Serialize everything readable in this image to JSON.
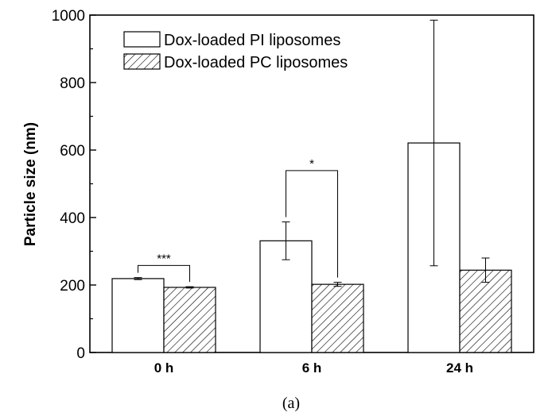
{
  "chart_data": {
    "type": "bar",
    "title": "",
    "xlabel": "",
    "ylabel": "Particle size (nm)",
    "ylim": [
      0,
      1000
    ],
    "yticks": [
      0,
      200,
      400,
      600,
      800,
      1000
    ],
    "categories": [
      "0 h",
      "6 h",
      "24 h"
    ],
    "series": [
      {
        "name": "Dox-loaded PI liposomes",
        "values": [
          219,
          331,
          621
        ],
        "errors": [
          3,
          56,
          364
        ],
        "fill": "white"
      },
      {
        "name": "Dox-loaded PC liposomes",
        "values": [
          193,
          202,
          244
        ],
        "errors": [
          2,
          6,
          36
        ],
        "fill": "hatched"
      }
    ],
    "significance": [
      {
        "category": "0 h",
        "label": "***",
        "bracket_height": 258
      },
      {
        "category": "6 h",
        "label": "*",
        "bracket_height": 539
      }
    ],
    "legend": "top-left",
    "grid": false
  },
  "caption": "(a)",
  "colors": {
    "axis": "#000000",
    "bar_fill": "#ffffff",
    "hatch": "#000000"
  }
}
